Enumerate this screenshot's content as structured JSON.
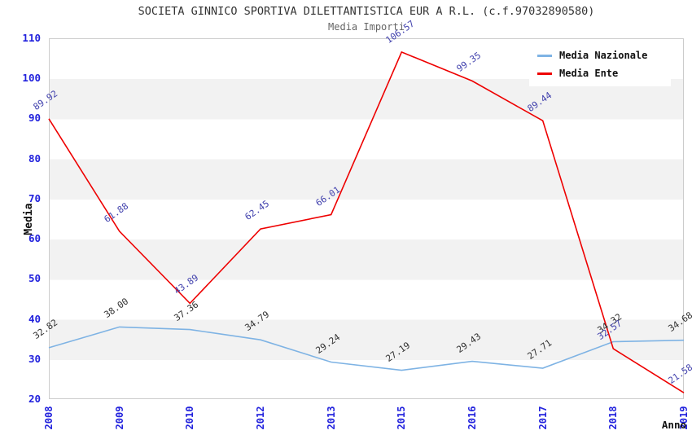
{
  "header": {
    "title": "SOCIETA GINNICO SPORTIVA DILETTANTISTICA EUR A R.L. (c.f.97032890580)",
    "subtitle": "Media Importi"
  },
  "y_axis": {
    "title": "Media",
    "ticks": [
      "110",
      "100",
      "90",
      "80",
      "70",
      "60",
      "50",
      "40",
      "30",
      "20"
    ],
    "tick_color": "#2222dd"
  },
  "x_axis": {
    "title": "Anno",
    "ticks": [
      "2008",
      "2009",
      "2010",
      "2012",
      "2013",
      "2015",
      "2016",
      "2017",
      "2018",
      "2019"
    ],
    "tick_color": "#2222dd"
  },
  "legend": {
    "items": [
      {
        "label": "Media Nazionale",
        "color": "#7eb3e4"
      },
      {
        "label": "Media Ente",
        "color": "#ee0000"
      }
    ]
  },
  "chart_data": {
    "type": "line",
    "title": "SOCIETA GINNICO SPORTIVA DILETTANTISTICA EUR A R.L. (c.f.97032890580)",
    "subtitle": "Media Importi",
    "xlabel": "Anno",
    "ylabel": "Media",
    "categories": [
      "2008",
      "2009",
      "2010",
      "2012",
      "2013",
      "2015",
      "2016",
      "2017",
      "2018",
      "2019"
    ],
    "series": [
      {
        "name": "Media Nazionale",
        "color": "#7eb3e4",
        "label_color": "#303030",
        "values": [
          32.82,
          38.0,
          37.36,
          34.79,
          29.24,
          27.19,
          29.43,
          27.71,
          34.32,
          34.68
        ]
      },
      {
        "name": "Media Ente",
        "color": "#ee0000",
        "label_color": "#4141ad",
        "values": [
          89.92,
          61.88,
          43.89,
          62.45,
          66.01,
          106.57,
          99.35,
          89.44,
          32.57,
          21.58
        ]
      }
    ],
    "ylim": [
      20,
      110
    ],
    "ytick_step": 10,
    "grid": "alternating-horizontal-bands",
    "band_colors": [
      "#ffffff",
      "#f2f2f2"
    ],
    "legend_position": "top-right",
    "point_labels": "two-decimals-rotated"
  }
}
